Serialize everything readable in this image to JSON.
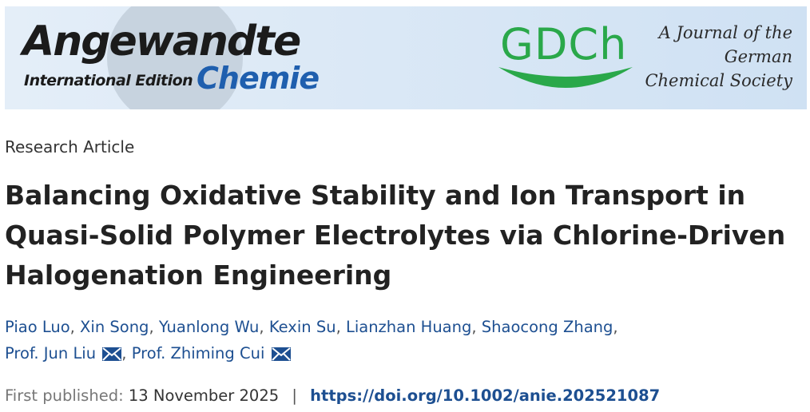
{
  "banner": {
    "logo_main": "Angewandte",
    "logo_sub": "International Edition",
    "logo_chemie": "Chemie",
    "gdch": "GDCh",
    "journal_lines": [
      "A Journal of the",
      "German",
      "Chemical Society"
    ]
  },
  "article": {
    "type": "Research Article",
    "title_lines": [
      "Balancing Oxidative Stability and Ion Transport in",
      "Quasi-Solid Polymer Electrolytes via Chlorine-Driven",
      "Halogenation Engineering"
    ]
  },
  "authors": [
    "Piao Luo",
    "Xin Song",
    "Yuanlong Wu",
    "Kexin Su",
    "Lianzhan Huang",
    "Shaocong Zhang",
    "Prof. Jun Liu",
    "Prof. Zhiming Cui"
  ],
  "publication": {
    "label": "First published:",
    "date": "13 November 2025",
    "separator": "|",
    "doi": "https://doi.org/10.1002/anie.202521087"
  },
  "colors": {
    "link": "#1d4f91",
    "gdch_green": "#2aa84a",
    "chemie_blue": "#1f5fae"
  }
}
